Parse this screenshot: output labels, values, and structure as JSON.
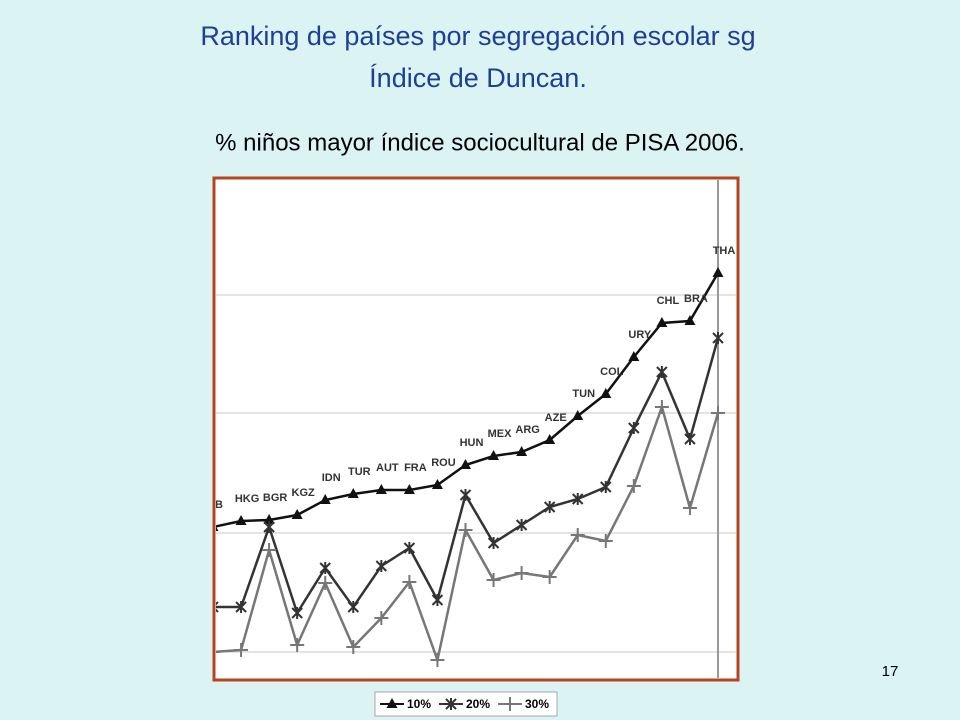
{
  "title_lines": [
    "Ranking de países por segregación escolar sg",
    "Índice de Duncan."
  ],
  "page_number": "17",
  "chart_data": {
    "type": "line",
    "subtitle": "% niños mayor  índice sociocultural de PISA 2006.",
    "categories": [
      "B",
      "HKG",
      "BGR",
      "KGZ",
      "IDN",
      "TUR",
      "AUT",
      "FRA",
      "ROU",
      "HUN",
      "MEX",
      "ARG",
      "AZE",
      "TUN",
      "COL",
      "URY",
      "CHL",
      "BRA",
      "THA"
    ],
    "ylim": [
      0,
      100
    ],
    "series": [
      {
        "name": "10%",
        "color": "#111111",
        "marker": "triangle",
        "values": [
          30.6,
          31.8,
          32,
          33,
          36,
          37.2,
          38,
          38,
          39,
          43,
          44.8,
          45.6,
          48,
          52.8,
          57.2,
          64.6,
          71.4,
          71.8,
          81.4
        ]
      },
      {
        "name": "20%",
        "color": "#333333",
        "marker": "star",
        "values": [
          14.6,
          14.6,
          30.6,
          13.4,
          22.4,
          14.6,
          22.8,
          26.4,
          16,
          37,
          27.4,
          31,
          34.6,
          36.2,
          38.6,
          50.4,
          61.6,
          48.2,
          68.4
        ]
      },
      {
        "name": "30%",
        "color": "#777777",
        "marker": "plus",
        "values": [
          5.6,
          6,
          26,
          7,
          19.4,
          6.6,
          12.4,
          19.6,
          4,
          30,
          20,
          21.4,
          20.6,
          29,
          27.8,
          38.8,
          54.6,
          34.4,
          53.4
        ]
      }
    ]
  }
}
